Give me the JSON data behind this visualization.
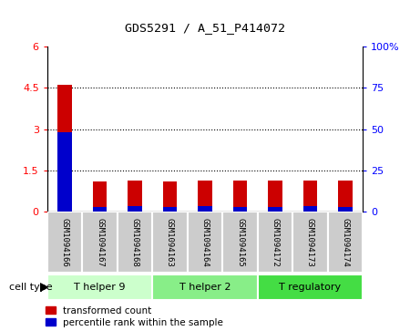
{
  "title": "GDS5291 / A_51_P414072",
  "samples": [
    "GSM1094166",
    "GSM1094167",
    "GSM1094168",
    "GSM1094163",
    "GSM1094164",
    "GSM1094165",
    "GSM1094172",
    "GSM1094173",
    "GSM1094174"
  ],
  "red_values": [
    4.6,
    1.1,
    1.15,
    1.1,
    1.15,
    1.15,
    1.15,
    1.15,
    1.15
  ],
  "blue_values_scaled": [
    2.9,
    0.18,
    0.2,
    0.18,
    0.2,
    0.18,
    0.18,
    0.2,
    0.18
  ],
  "ylim_left": [
    0,
    6
  ],
  "ylim_right": [
    0,
    100
  ],
  "yticks_left": [
    0,
    1.5,
    3.0,
    4.5,
    6.0
  ],
  "yticks_right": [
    0,
    25,
    50,
    75,
    100
  ],
  "ytick_labels_right": [
    "0",
    "25",
    "50",
    "75",
    "100%"
  ],
  "ytick_labels_left": [
    "0",
    "1.5",
    "3",
    "4.5",
    "6"
  ],
  "cell_groups": [
    {
      "label": "T helper 9",
      "indices": [
        0,
        1,
        2
      ],
      "color": "#ccffcc"
    },
    {
      "label": "T helper 2",
      "indices": [
        3,
        4,
        5
      ],
      "color": "#88ee88"
    },
    {
      "label": "T regulatory",
      "indices": [
        6,
        7,
        8
      ],
      "color": "#44dd44"
    }
  ],
  "bar_width": 0.4,
  "red_color": "#cc0000",
  "blue_color": "#0000cc",
  "bar_bg_color": "#cccccc",
  "label_bg_color": "#cccccc",
  "legend_labels": [
    "transformed count",
    "percentile rank within the sample"
  ],
  "cell_type_label": "cell type"
}
